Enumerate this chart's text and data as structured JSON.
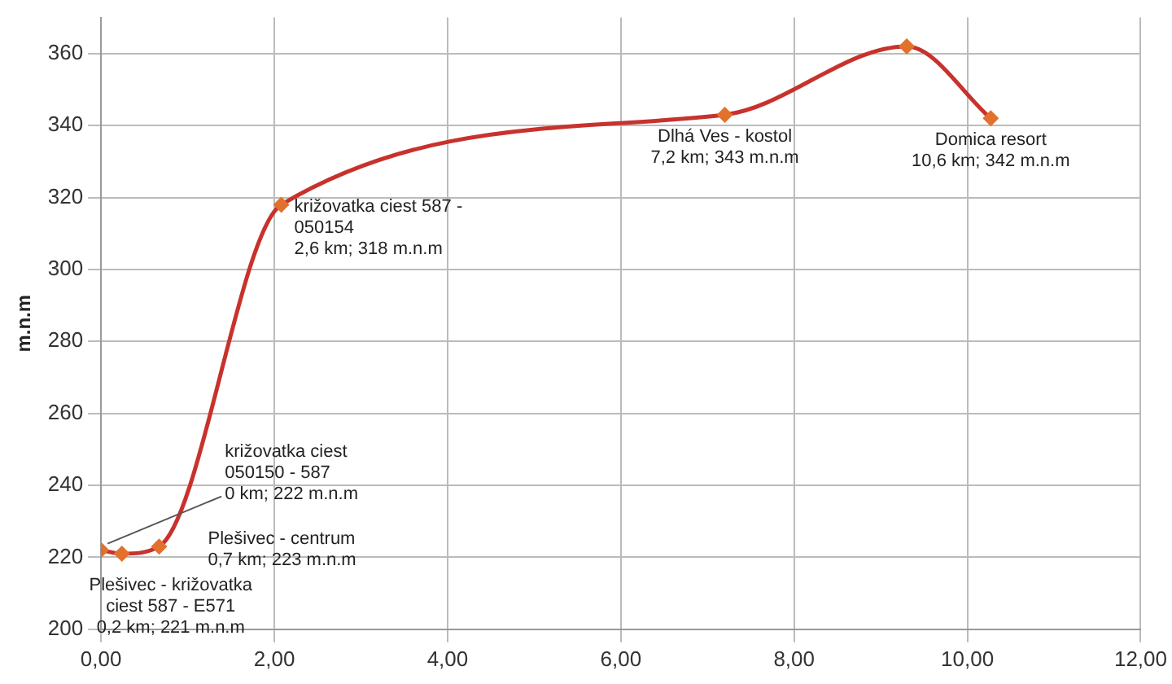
{
  "chart_data": {
    "type": "line",
    "ylabel": "m.n.m",
    "x": [
      0,
      0.24,
      0.67,
      2.08,
      7.2,
      9.3,
      10.27
    ],
    "series": [
      {
        "color": "#c8322d",
        "values": [
          222,
          221,
          223,
          318,
          343,
          362,
          342
        ]
      }
    ],
    "xlim": [
      0,
      12
    ],
    "xticks": [
      {
        "value": 0,
        "label": "0,00"
      },
      {
        "value": 2,
        "label": "2,00"
      },
      {
        "value": 4,
        "label": "4,00"
      },
      {
        "value": 6,
        "label": "6,00"
      },
      {
        "value": 8,
        "label": "8,00"
      },
      {
        "value": 10,
        "label": "10,00"
      },
      {
        "value": 12,
        "label": "12,00"
      }
    ],
    "ylim": [
      200,
      370
    ],
    "yticks": [
      200,
      220,
      240,
      260,
      280,
      300,
      320,
      340,
      360
    ],
    "grid": true,
    "legend": false,
    "marker": "diamond",
    "line_style": "solid",
    "annotations": [
      {
        "text": "križovatka ciest\n050150 - 587\n0 km; 222 m.n.m",
        "x": 0,
        "y": 222
      },
      {
        "text": "Plešivec - križovatka\nciest 587 - E571\n0,2 km; 221 m.n.m",
        "x": 0.24,
        "y": 221
      },
      {
        "text": "Plešivec - centrum\n0,7 km; 223 m.n.m",
        "x": 0.67,
        "y": 223
      },
      {
        "text": "križovatka ciest 587 -\n050154\n2,6 km; 318 m.n.m",
        "x": 2.08,
        "y": 318
      },
      {
        "text": "Dlhá Ves - kostol\n7,2 km; 343 m.n.m",
        "x": 7.2,
        "y": 343
      },
      {
        "text": "Domica resort\n10,6 km; 342 m.n.m",
        "x": 10.27,
        "y": 342
      }
    ]
  }
}
